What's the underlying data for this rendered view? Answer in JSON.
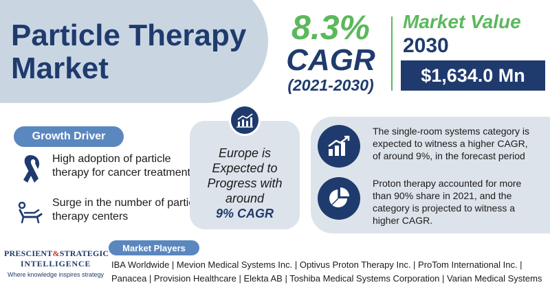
{
  "title": {
    "line1": "Particle Therapy",
    "line2": "Market"
  },
  "cagr": {
    "value": "8.3%",
    "label": "CAGR",
    "period": "(2021-2030)"
  },
  "market_value": {
    "heading": "Market Value",
    "year": "2030",
    "amount": "$1,634.0 Mn"
  },
  "growth_driver": {
    "heading": "Growth Driver",
    "items": [
      {
        "icon": "ribbon-icon",
        "text": "High adoption of particle therapy for cancer treatment"
      },
      {
        "icon": "recliner-icon",
        "text": "Surge in the number of particle therapy centers"
      }
    ]
  },
  "europe": {
    "icon": "chart-growth-icon",
    "text": "Europe is Expected to Progress with around",
    "cagr": "9% CAGR"
  },
  "segments": [
    {
      "icon": "bar-growth-icon",
      "text": "The single-room systems category is expected to witness a higher CAGR, of around 9%, in the forecast period"
    },
    {
      "icon": "pie-chart-icon",
      "text": "Proton therapy accounted for more than 90% share in 2021, and the category is projected to witness a higher CAGR."
    }
  ],
  "logo": {
    "line1a": "PRESCIENT",
    "amp": "&",
    "line1b": "STRATEGIC",
    "line2": "INTELLIGENCE",
    "tagline": "Where knowledge inspires strategy"
  },
  "market_players": {
    "heading": "Market Players",
    "list": "IBA Worldwide | Mevion Medical Systems Inc. | Optivus Proton Therapy Inc. | ProTom International Inc. | Panacea | Provision Healthcare | Elekta AB | Toshiba Medical Systems Corporation | Varian Medical Systems Inc."
  },
  "colors": {
    "navy": "#1f3b6e",
    "green": "#5cb85c",
    "pill_blue": "#5b87bf",
    "card_gray": "#dde3ea",
    "title_blob": "#c9d6e2"
  }
}
